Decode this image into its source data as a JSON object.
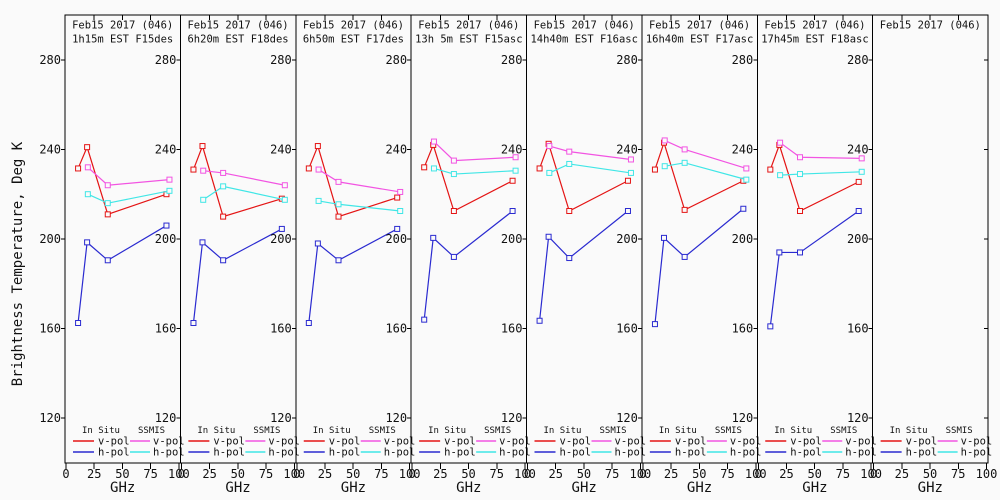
{
  "page": {
    "background": "#fafafa"
  },
  "colors": {
    "in_situ_v_pol": "#e41414",
    "in_situ_h_pol": "#2a2ad0",
    "ssmis_v_pol": "#f254e2",
    "ssmis_h_pol": "#40e6e6",
    "axis": "#000000"
  },
  "legend": {
    "group1": "In Situ",
    "group2": "SSMIS",
    "row1": "v-pol",
    "row2": "h-pol"
  },
  "chart_data": {
    "type": "line",
    "ylabel": "Brightness Temperature, Deg K",
    "xlabel": "GHz",
    "ylim": [
      100,
      300
    ],
    "xlim": [
      0,
      100
    ],
    "yticks": [
      120,
      160,
      200,
      240,
      280
    ],
    "xticks": [
      0,
      25,
      50,
      75,
      100
    ],
    "x_in_situ": [
      10.7,
      18.7,
      37,
      89
    ],
    "x_ssmis": [
      19.35,
      37,
      91.655
    ],
    "panels": [
      {
        "title": "Feb15 2017 (046)",
        "subtitle": "1h15m EST F15des",
        "in_situ_v_pol": [
          231.5,
          241,
          211,
          220
        ],
        "in_situ_h_pol": [
          162.5,
          198.5,
          190.5,
          206
        ],
        "ssmis_v_pol": [
          232,
          224,
          226.5
        ],
        "ssmis_h_pol": [
          220,
          216,
          221.5
        ]
      },
      {
        "title": "Feb15 2017 (046)",
        "subtitle": "6h20m EST F18des",
        "in_situ_v_pol": [
          231,
          241.5,
          210,
          218
        ],
        "in_situ_h_pol": [
          162.5,
          198.5,
          190.5,
          204.5
        ],
        "ssmis_v_pol": [
          230.5,
          229.5,
          224
        ],
        "ssmis_h_pol": [
          217.5,
          223.5,
          217.5
        ]
      },
      {
        "title": "Feb15 2017 (046)",
        "subtitle": "6h50m EST F17des",
        "in_situ_v_pol": [
          231.5,
          241.5,
          210,
          218.5
        ],
        "in_situ_h_pol": [
          162.5,
          198,
          190.5,
          204.5
        ],
        "ssmis_v_pol": [
          231,
          225.5,
          221
        ],
        "ssmis_h_pol": [
          217,
          215.5,
          212.5
        ]
      },
      {
        "title": "Feb15 2017 (046)",
        "subtitle": "13h 5m EST F15asc",
        "in_situ_v_pol": [
          232,
          242,
          212.5,
          226
        ],
        "in_situ_h_pol": [
          164,
          200.5,
          192,
          212.5
        ],
        "ssmis_v_pol": [
          243.5,
          235,
          236.5
        ],
        "ssmis_h_pol": [
          231.5,
          229,
          230.5
        ]
      },
      {
        "title": "Feb15 2017 (046)",
        "subtitle": "14h40m EST F16asc",
        "in_situ_v_pol": [
          231.5,
          242.5,
          212.5,
          226
        ],
        "in_situ_h_pol": [
          163.5,
          201,
          191.5,
          212.5
        ],
        "ssmis_v_pol": [
          241.5,
          239,
          235.5
        ],
        "ssmis_h_pol": [
          229.5,
          233.5,
          229.5
        ]
      },
      {
        "title": "Feb15 2017 (046)",
        "subtitle": "16h40m EST F17asc",
        "in_situ_v_pol": [
          231,
          243,
          213,
          226
        ],
        "in_situ_h_pol": [
          162,
          200.5,
          192,
          213.5
        ],
        "ssmis_v_pol": [
          244,
          240,
          231.5
        ],
        "ssmis_h_pol": [
          232.5,
          234,
          226.5
        ]
      },
      {
        "title": "Feb15 2017 (046)",
        "subtitle": "17h45m EST F18asc",
        "in_situ_v_pol": [
          231,
          242,
          212.5,
          225.5
        ],
        "in_situ_h_pol": [
          161,
          194,
          194,
          212.5
        ],
        "ssmis_v_pol": [
          243,
          236.5,
          236
        ],
        "ssmis_h_pol": [
          228.5,
          229,
          230
        ]
      },
      {
        "title": "Feb15 2017 (046)",
        "subtitle": "",
        "in_situ_v_pol": [],
        "in_situ_h_pol": [],
        "ssmis_v_pol": [],
        "ssmis_h_pol": []
      }
    ]
  }
}
